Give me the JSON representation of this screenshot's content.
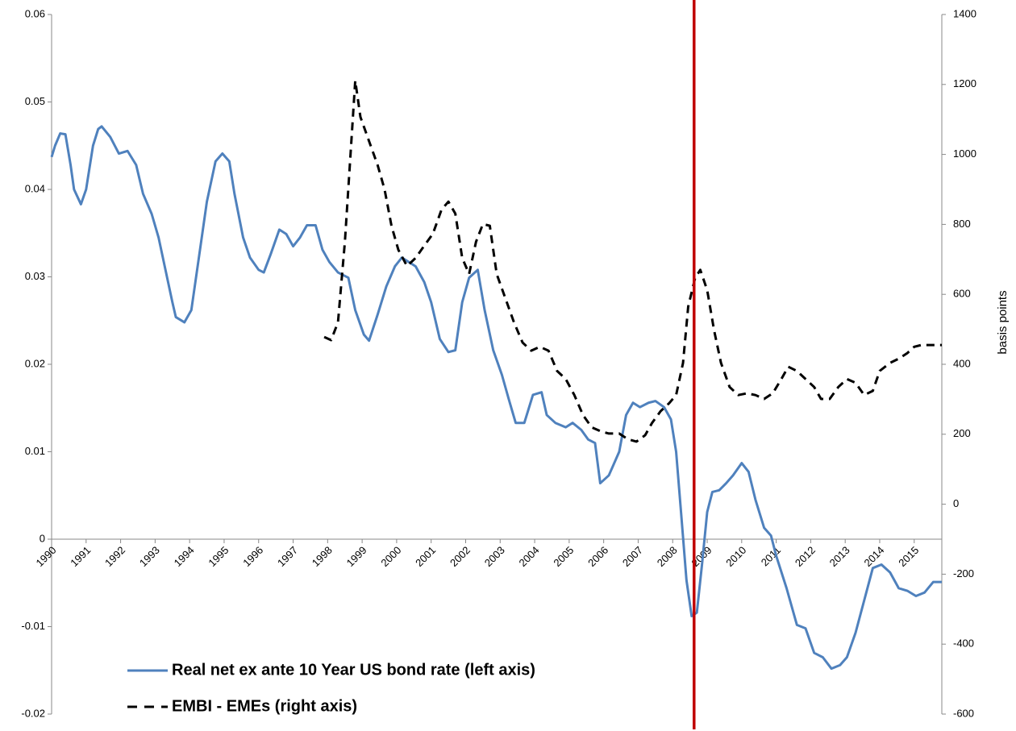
{
  "chart_data": {
    "type": "line",
    "y2label": "basis points",
    "xlim": [
      1990,
      2015.8
    ],
    "xticks": [
      1990,
      1991,
      1992,
      1993,
      1994,
      1995,
      1996,
      1997,
      1998,
      1999,
      2000,
      2001,
      2002,
      2003,
      2004,
      2005,
      2006,
      2007,
      2008,
      2009,
      2010,
      2011,
      2012,
      2013,
      2014,
      2015
    ],
    "ylim": [
      -0.02,
      0.06
    ],
    "yticks": [
      -0.02,
      -0.01,
      0,
      0.01,
      0.02,
      0.03,
      0.04,
      0.05,
      0.06
    ],
    "y2lim": [
      -600,
      1400
    ],
    "y2ticks": [
      -600,
      -400,
      -200,
      0,
      200,
      400,
      600,
      800,
      1000,
      1200,
      1400
    ],
    "grid": false,
    "legend": "bottom-left",
    "vline": {
      "x": 2008.62,
      "color": "#c00000"
    },
    "series": [
      {
        "name": "Real net ex ante 10 Year US bond rate (left axis)",
        "color": "#4f81bd",
        "dash": false,
        "x": [
          1990.0,
          1990.1,
          1990.25,
          1990.4,
          1990.55,
          1990.65,
          1990.85,
          1991.0,
          1991.2,
          1991.35,
          1991.45,
          1991.7,
          1991.95,
          1992.2,
          1992.45,
          1992.65,
          1992.9,
          1993.1,
          1993.3,
          1993.5,
          1993.6,
          1993.85,
          1994.05,
          1994.25,
          1994.5,
          1994.75,
          1994.95,
          1995.15,
          1995.3,
          1995.55,
          1995.75,
          1996.0,
          1996.15,
          1996.35,
          1996.6,
          1996.8,
          1997.0,
          1997.2,
          1997.4,
          1997.65,
          1997.85,
          1998.05,
          1998.3,
          1998.6,
          1998.8,
          1999.05,
          1999.2,
          1999.45,
          1999.7,
          1999.95,
          2000.15,
          2000.35,
          2000.55,
          2000.8,
          2001.0,
          2001.25,
          2001.5,
          2001.7,
          2001.9,
          2002.1,
          2002.35,
          2002.55,
          2002.8,
          2003.05,
          2003.25,
          2003.45,
          2003.7,
          2003.95,
          2004.2,
          2004.35,
          2004.6,
          2004.9,
          2005.1,
          2005.35,
          2005.55,
          2005.75,
          2005.9,
          2006.15,
          2006.45,
          2006.65,
          2006.85,
          2007.05,
          2007.3,
          2007.5,
          2007.75,
          2007.95,
          2008.1,
          2008.25,
          2008.4,
          2008.55,
          2008.7,
          2008.85,
          2009.0,
          2009.15,
          2009.35,
          2009.55,
          2009.75,
          2010.0,
          2010.2,
          2010.4,
          2010.65,
          2010.85,
          2011.0,
          2011.3,
          2011.6,
          2011.85,
          2012.1,
          2012.35,
          2012.6,
          2012.85,
          2013.05,
          2013.3,
          2013.55,
          2013.8,
          2014.05,
          2014.3,
          2014.55,
          2014.8,
          2015.05,
          2015.3,
          2015.55,
          2015.8
        ],
        "values": [
          0.0437,
          0.045,
          0.0464,
          0.0463,
          0.0428,
          0.04,
          0.0383,
          0.04,
          0.045,
          0.0469,
          0.0472,
          0.046,
          0.0441,
          0.0444,
          0.0428,
          0.0395,
          0.0372,
          0.0345,
          0.0308,
          0.0271,
          0.0254,
          0.0248,
          0.0262,
          0.0317,
          0.0386,
          0.0432,
          0.0441,
          0.0432,
          0.0395,
          0.0345,
          0.0322,
          0.0308,
          0.0305,
          0.0326,
          0.0354,
          0.0349,
          0.0335,
          0.0345,
          0.0359,
          0.0359,
          0.0331,
          0.0317,
          0.0305,
          0.0299,
          0.0262,
          0.0234,
          0.0227,
          0.0257,
          0.0289,
          0.0312,
          0.0322,
          0.0317,
          0.0312,
          0.0294,
          0.0271,
          0.0229,
          0.0214,
          0.0216,
          0.0271,
          0.0299,
          0.0308,
          0.0262,
          0.0216,
          0.0188,
          0.016,
          0.0133,
          0.0133,
          0.0165,
          0.0168,
          0.0142,
          0.0133,
          0.0128,
          0.0133,
          0.0125,
          0.0114,
          0.011,
          0.0064,
          0.0073,
          0.01,
          0.0142,
          0.0156,
          0.0151,
          0.0156,
          0.0158,
          0.0151,
          0.0137,
          0.01,
          0.0027,
          -0.0047,
          -0.0088,
          -0.0084,
          -0.0029,
          0.0031,
          0.0054,
          0.0056,
          0.0064,
          0.0073,
          0.0087,
          0.0077,
          0.0045,
          0.0013,
          0.0004,
          -0.0019,
          -0.0056,
          -0.0098,
          -0.0102,
          -0.013,
          -0.0135,
          -0.0148,
          -0.0144,
          -0.0135,
          -0.0107,
          -0.007,
          -0.0033,
          -0.0029,
          -0.0038,
          -0.0056,
          -0.0059,
          -0.0065,
          -0.0061,
          -0.0049,
          -0.0049
        ]
      },
      {
        "name": "EMBI - EMEs (right axis)",
        "color": "#000000",
        "dash": true,
        "axis": "y2",
        "x": [
          1997.9,
          1998.1,
          1998.3,
          1998.5,
          1998.65,
          1998.8,
          1998.95,
          1999.2,
          1999.45,
          1999.65,
          1999.85,
          2000.05,
          2000.3,
          2000.55,
          2000.8,
          2001.05,
          2001.3,
          2001.5,
          2001.7,
          2001.9,
          2002.1,
          2002.3,
          2002.5,
          2002.7,
          2002.9,
          2003.15,
          2003.4,
          2003.65,
          2003.9,
          2004.15,
          2004.4,
          2004.65,
          2004.9,
          2005.15,
          2005.4,
          2005.65,
          2005.9,
          2006.15,
          2006.45,
          2006.7,
          2006.95,
          2007.2,
          2007.4,
          2007.65,
          2007.9,
          2008.1,
          2008.3,
          2008.45,
          2008.65,
          2008.8,
          2009.0,
          2009.2,
          2009.4,
          2009.65,
          2009.9,
          2010.15,
          2010.4,
          2010.65,
          2010.9,
          2011.15,
          2011.35,
          2011.6,
          2011.85,
          2012.1,
          2012.3,
          2012.55,
          2012.8,
          2013.05,
          2013.3,
          2013.55,
          2013.8,
          2014.0,
          2014.3,
          2014.55,
          2014.8,
          2015.0,
          2015.2,
          2015.8
        ],
        "values": [
          478,
          469,
          520,
          750,
          980,
          1211,
          1107,
          1038,
          969,
          900,
          796,
          727,
          681,
          704,
          739,
          773,
          842,
          865,
          831,
          704,
          658,
          750,
          801,
          796,
          658,
          589,
          520,
          462,
          439,
          450,
          439,
          381,
          358,
          312,
          255,
          220,
          209,
          202,
          202,
          186,
          179,
          197,
          232,
          266,
          289,
          312,
          404,
          565,
          647,
          670,
          612,
          497,
          404,
          335,
          312,
          317,
          312,
          301,
          317,
          358,
          393,
          381,
          358,
          335,
          301,
          301,
          335,
          358,
          347,
          312,
          324,
          381,
          404,
          416,
          432,
          450,
          455,
          455
        ]
      }
    ]
  }
}
